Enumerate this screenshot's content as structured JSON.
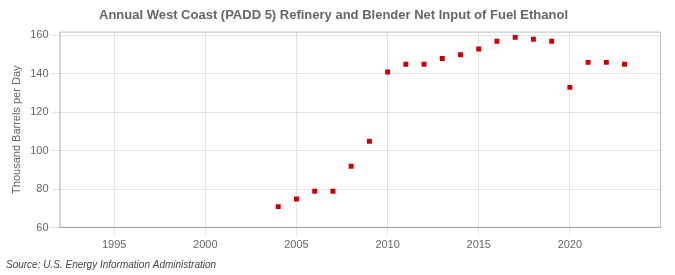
{
  "chart_data": {
    "type": "scatter",
    "title": "Annual West Coast (PADD 5) Refinery and Blender Net Input of Fuel Ethanol",
    "ylabel": "Thousand Barrels per Day",
    "annotations": [
      "Source: U.S. Energy Information Administration"
    ],
    "x": [
      2004,
      2005,
      2006,
      2007,
      2008,
      2009,
      2010,
      2011,
      2012,
      2013,
      2014,
      2015,
      2016,
      2017,
      2018,
      2019,
      2020,
      2021,
      2022,
      2023
    ],
    "values": [
      71,
      75,
      79,
      79,
      92,
      105,
      141,
      145,
      145,
      148,
      150,
      153,
      157,
      159,
      158,
      157,
      133,
      146,
      146,
      145
    ],
    "color": "#cc0000",
    "marker": "square",
    "xlim": [
      1992,
      2025
    ],
    "xticks": [
      1995,
      2000,
      2005,
      2010,
      2015,
      2020
    ],
    "ylim": [
      60,
      162
    ],
    "yticks": [
      60,
      80,
      100,
      120,
      140,
      160
    ],
    "grid": true
  }
}
